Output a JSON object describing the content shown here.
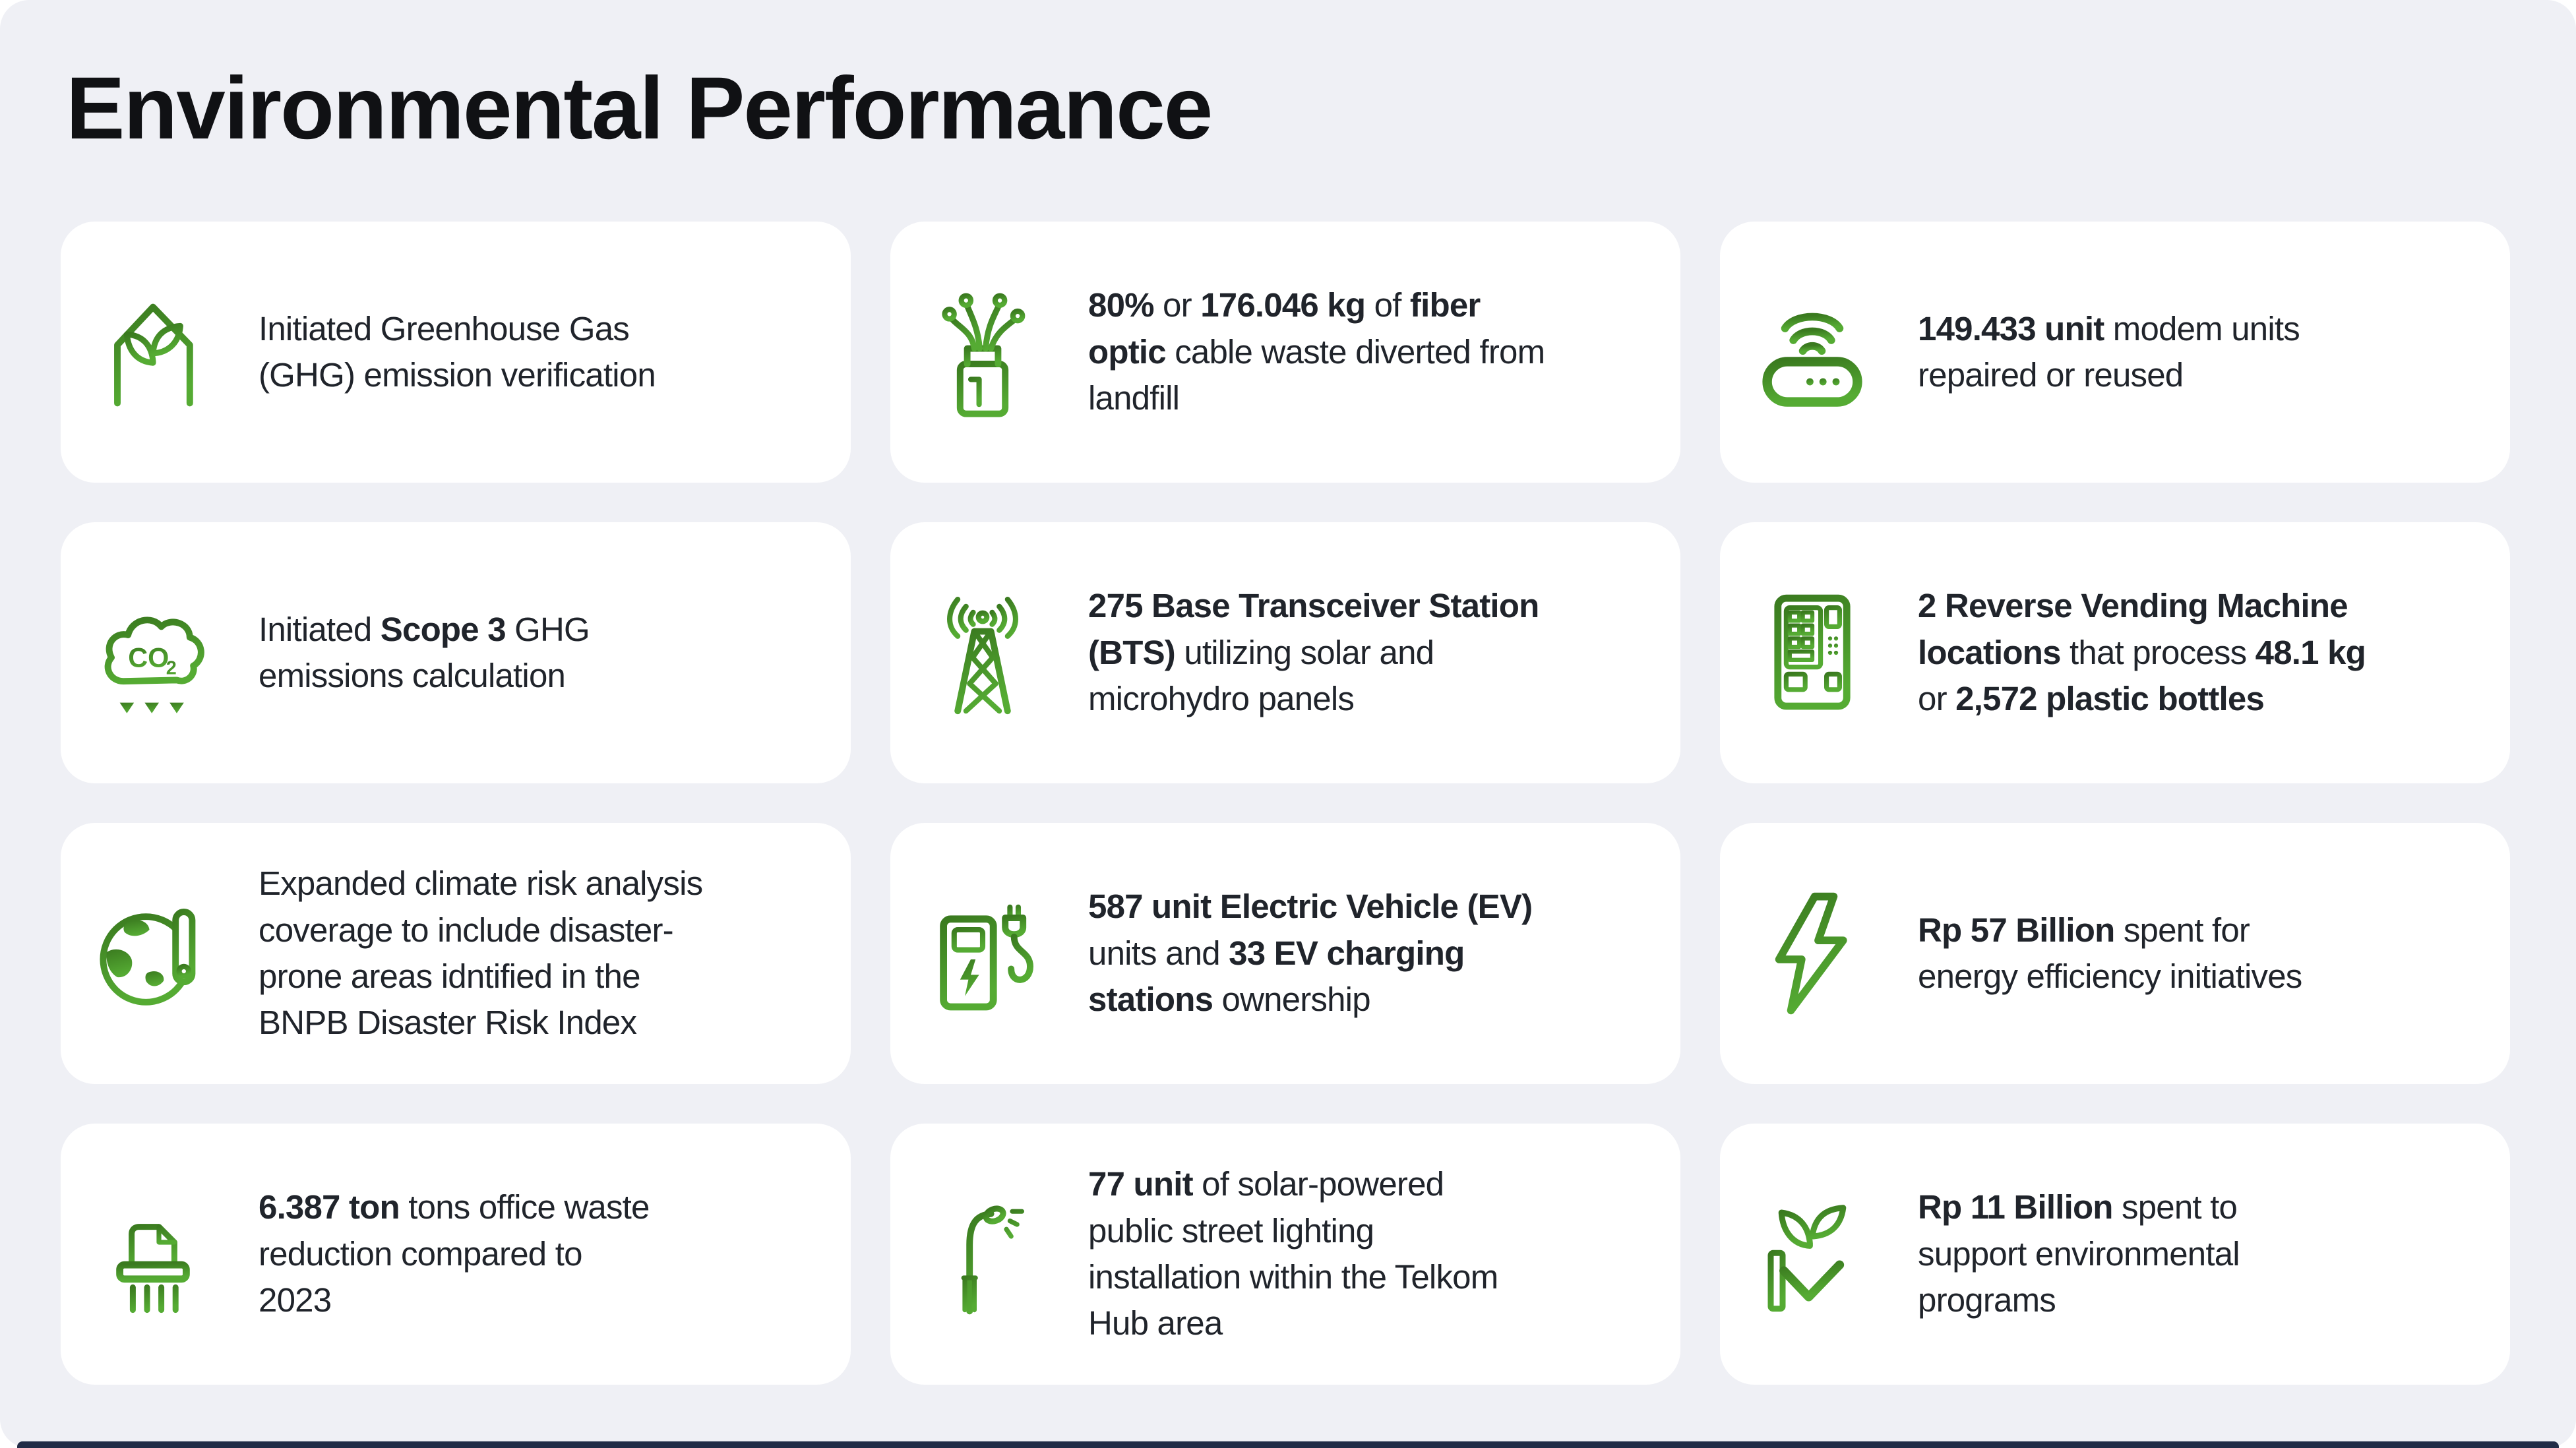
{
  "page": {
    "title": "Environmental Performance",
    "panel_background": "#eff0f5",
    "card_background": "#ffffff",
    "text_color": "#20242b",
    "accent_green_dark": "#3a7a1f",
    "accent_green_light": "#55ab33",
    "bottom_bar_color": "#222c47"
  },
  "cards": [
    {
      "icon": "greenhouse-icon",
      "segments": [
        {
          "t": "Initiated Greenhouse Gas"
        },
        {
          "br": true
        },
        {
          "t": "(GHG) emission verification"
        }
      ]
    },
    {
      "icon": "fiber-optic-cable-icon",
      "segments": [
        {
          "t": "80%",
          "b": true
        },
        {
          "t": " or "
        },
        {
          "t": "176.046 kg",
          "b": true
        },
        {
          "t": " of "
        },
        {
          "t": "fiber",
          "b": true
        },
        {
          "br": true
        },
        {
          "t": "optic",
          "b": true
        },
        {
          "t": " cable waste diverted from"
        },
        {
          "br": true
        },
        {
          "t": "landfill"
        }
      ]
    },
    {
      "icon": "modem-router-icon",
      "segments": [
        {
          "t": "149.433 unit",
          "b": true
        },
        {
          "t": " modem units"
        },
        {
          "br": true
        },
        {
          "t": "repaired or reused"
        }
      ]
    },
    {
      "icon": "co2-emission-cloud-icon",
      "icon_text": {
        "main": "CO",
        "sub": "2"
      },
      "segments": [
        {
          "t": "Initiated "
        },
        {
          "t": "Scope 3",
          "b": true
        },
        {
          "t": " GHG"
        },
        {
          "br": true
        },
        {
          "t": "emissions calculation"
        }
      ]
    },
    {
      "icon": "bts-tower-icon",
      "segments": [
        {
          "t": "275 Base Transceiver Station",
          "b": true
        },
        {
          "br": true
        },
        {
          "t": "(BTS)",
          "b": true
        },
        {
          "t": " utilizing solar and"
        },
        {
          "br": true
        },
        {
          "t": "microhydro panels"
        }
      ]
    },
    {
      "icon": "reverse-vending-machine-icon",
      "segments": [
        {
          "t": "2 Reverse Vending Machine",
          "b": true
        },
        {
          "br": true
        },
        {
          "t": "locations",
          "b": true
        },
        {
          "t": " that process "
        },
        {
          "t": "48.1 kg",
          "b": true
        },
        {
          "br": true
        },
        {
          "t": "or "
        },
        {
          "t": "2,572 plastic bottles",
          "b": true
        }
      ]
    },
    {
      "icon": "globe-thermometer-icon",
      "segments": [
        {
          "t": "Expanded climate risk analysis"
        },
        {
          "br": true
        },
        {
          "t": "coverage to include disaster-"
        },
        {
          "br": true
        },
        {
          "t": "prone areas idntified in the"
        },
        {
          "br": true
        },
        {
          "t": "BNPB Disaster Risk Index"
        }
      ]
    },
    {
      "icon": "ev-charging-station-icon",
      "segments": [
        {
          "t": "587 unit Electric Vehicle (EV)",
          "b": true
        },
        {
          "br": true
        },
        {
          "t": "units and "
        },
        {
          "t": "33 EV charging",
          "b": true
        },
        {
          "br": true
        },
        {
          "t": "stations",
          "b": true
        },
        {
          "t": " ownership"
        }
      ]
    },
    {
      "icon": "lightning-bolt-icon",
      "segments": [
        {
          "t": "Rp 57 Billion",
          "b": true
        },
        {
          "t": " spent for"
        },
        {
          "br": true
        },
        {
          "t": "energy efficiency initiatives"
        }
      ]
    },
    {
      "icon": "paper-shredder-icon",
      "segments": [
        {
          "t": "6.387 ton",
          "b": true
        },
        {
          "t": " tons office waste"
        },
        {
          "br": true
        },
        {
          "t": "reduction compared to"
        },
        {
          "br": true
        },
        {
          "t": "2023"
        }
      ]
    },
    {
      "icon": "street-light-icon",
      "segments": [
        {
          "t": "77 unit",
          "b": true
        },
        {
          "t": " of solar-powered"
        },
        {
          "br": true
        },
        {
          "t": "public street lighting"
        },
        {
          "br": true
        },
        {
          "t": "installation within the Telkom"
        },
        {
          "br": true
        },
        {
          "t": "Hub area"
        }
      ]
    },
    {
      "icon": "hand-plant-icon",
      "segments": [
        {
          "t": "Rp 11 Billion",
          "b": true
        },
        {
          "t": " spent to"
        },
        {
          "br": true
        },
        {
          "t": "support environmental"
        },
        {
          "br": true
        },
        {
          "t": "programs"
        }
      ]
    }
  ]
}
